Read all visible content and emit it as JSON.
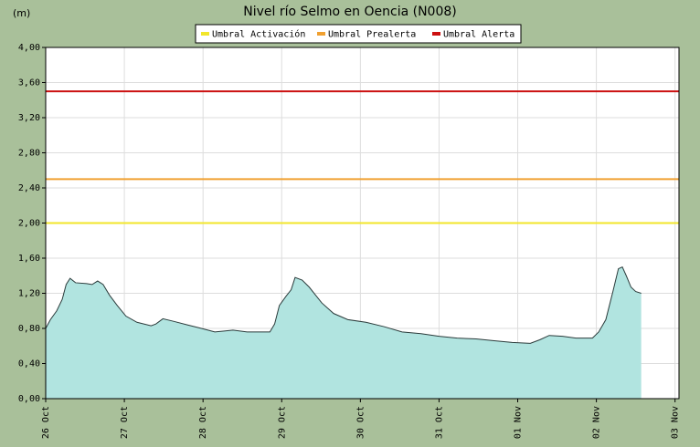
{
  "chart_data": {
    "type": "area",
    "title": "Nivel río Selmo en Oencia  (N008)",
    "y_label": "(m)",
    "ylim": [
      0,
      4
    ],
    "yticks": [
      {
        "value": 0,
        "label": "0,00"
      },
      {
        "value": 0.4,
        "label": "0,40"
      },
      {
        "value": 0.8,
        "label": "0,80"
      },
      {
        "value": 1.2,
        "label": "1,20"
      },
      {
        "value": 1.6,
        "label": "1,60"
      },
      {
        "value": 2,
        "label": "2,00"
      },
      {
        "value": 2.4,
        "label": "2,40"
      },
      {
        "value": 2.8,
        "label": "2,80"
      },
      {
        "value": 3.2,
        "label": "3,20"
      },
      {
        "value": 3.6,
        "label": "3,60"
      },
      {
        "value": 4,
        "label": "4,00"
      }
    ],
    "xlim": [
      0,
      8.05
    ],
    "xticks": [
      {
        "value": 0,
        "label": "26 Oct"
      },
      {
        "value": 1,
        "label": "27 Oct"
      },
      {
        "value": 2,
        "label": "28 Oct"
      },
      {
        "value": 3,
        "label": "29 Oct"
      },
      {
        "value": 4,
        "label": "30 Oct"
      },
      {
        "value": 5,
        "label": "31 Oct"
      },
      {
        "value": 6,
        "label": "01 Nov"
      },
      {
        "value": 7,
        "label": "02 Nov"
      },
      {
        "value": 8,
        "label": "03 Nov"
      }
    ],
    "grid": true,
    "color": "#b1e4e0",
    "line_color": "#2b3b3b",
    "x": [
      0,
      0.06,
      0.14,
      0.21,
      0.26,
      0.31,
      0.38,
      0.52,
      0.59,
      0.66,
      0.73,
      0.81,
      0.91,
      1.02,
      1.16,
      1.34,
      1.4,
      1.49,
      1.63,
      1.8,
      1.98,
      2.15,
      2.27,
      2.38,
      2.56,
      2.73,
      2.85,
      2.91,
      2.97,
      3.05,
      3.12,
      3.17,
      3.26,
      3.35,
      3.43,
      3.51,
      3.66,
      3.84,
      4.07,
      4.3,
      4.53,
      4.77,
      5,
      5.23,
      5.47,
      5.7,
      5.93,
      6.16,
      6.28,
      6.4,
      6.57,
      6.74,
      6.95,
      7.03,
      7.12,
      7.21,
      7.28,
      7.33,
      7.38,
      7.44,
      7.5,
      7.57
    ],
    "values": [
      0.8,
      0.9,
      1,
      1.13,
      1.3,
      1.37,
      1.32,
      1.31,
      1.3,
      1.34,
      1.3,
      1.18,
      1.06,
      0.94,
      0.87,
      0.83,
      0.85,
      0.91,
      0.88,
      0.84,
      0.8,
      0.76,
      0.77,
      0.78,
      0.76,
      0.76,
      0.76,
      0.85,
      1.06,
      1.16,
      1.24,
      1.38,
      1.35,
      1.27,
      1.18,
      1.09,
      0.97,
      0.9,
      0.87,
      0.82,
      0.76,
      0.74,
      0.71,
      0.69,
      0.68,
      0.66,
      0.64,
      0.63,
      0.67,
      0.72,
      0.71,
      0.69,
      0.69,
      0.76,
      0.9,
      1.22,
      1.48,
      1.5,
      1.4,
      1.27,
      1.22,
      1.2
    ],
    "thresholds": [
      {
        "name": "Umbral Activación",
        "color": "#f2e62a",
        "value": 2
      },
      {
        "name": "Umbral Prealerta",
        "color": "#f0a030",
        "value": 2.5
      },
      {
        "name": "Umbral Alerta",
        "color": "#cc1010",
        "value": 3.5
      }
    ]
  }
}
